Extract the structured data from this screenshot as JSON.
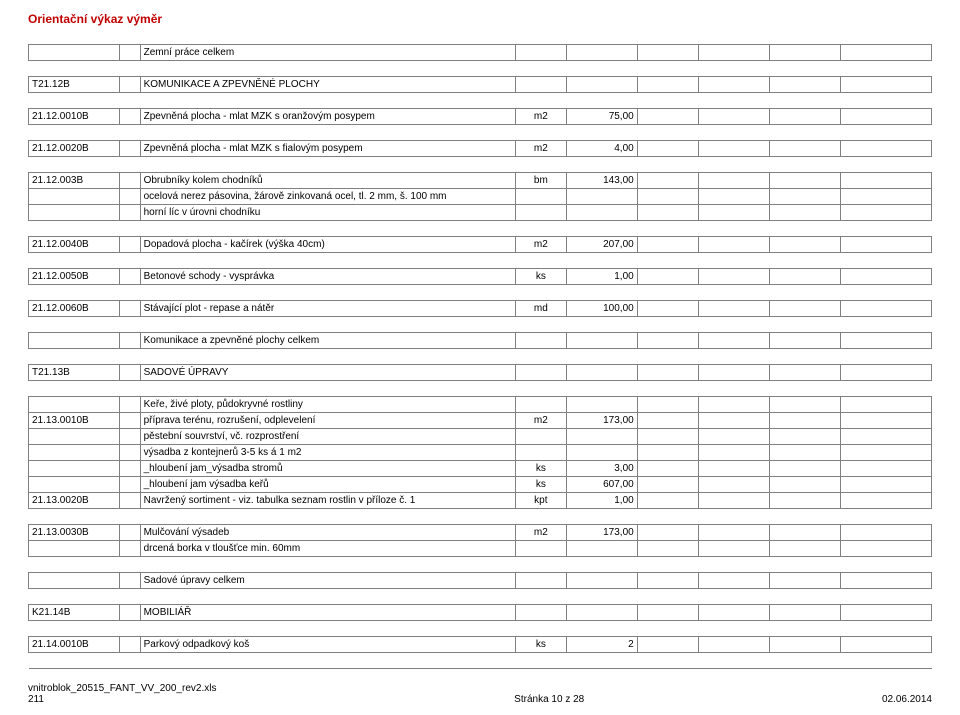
{
  "title": "Orientační výkaz výměr",
  "footer": {
    "left_line1": "vnitroblok_20515_FANT_VV_200_rev2.xls",
    "left_line2": "211",
    "center": "Stránka 10 z 28",
    "right": "02.06.2014"
  },
  "colors": {
    "title": "#c00000",
    "border": "#808080",
    "text": "#000000",
    "background": "#ffffff"
  },
  "rows": [
    {
      "t": "data",
      "code": "",
      "desc": "Zemní práce celkem",
      "unit": "",
      "qty": ""
    },
    {
      "t": "gap"
    },
    {
      "t": "data",
      "code": "T21.12B",
      "desc": "KOMUNIKACE A ZPEVNĚNÉ PLOCHY",
      "unit": "",
      "qty": ""
    },
    {
      "t": "gap"
    },
    {
      "t": "data",
      "code": "21.12.0010B",
      "desc": "Zpevněná plocha - mlat MZK s oranžovým posypem",
      "unit": "m2",
      "qty": "75,00"
    },
    {
      "t": "gap"
    },
    {
      "t": "data",
      "code": "21.12.0020B",
      "desc": "Zpevněná plocha - mlat MZK s fialovým posypem",
      "unit": "m2",
      "qty": "4,00"
    },
    {
      "t": "gap"
    },
    {
      "t": "data",
      "code": "21.12.003B",
      "desc": "Obrubníky kolem chodníků",
      "unit": "bm",
      "qty": "143,00"
    },
    {
      "t": "data",
      "code": "",
      "desc": "ocelová nerez pásovina, žárově zinkovaná ocel, tl. 2 mm, š. 100 mm",
      "unit": "",
      "qty": ""
    },
    {
      "t": "data",
      "code": "",
      "desc": "horní líc v úrovni chodníku",
      "unit": "",
      "qty": ""
    },
    {
      "t": "gap"
    },
    {
      "t": "data",
      "code": "21.12.0040B",
      "desc": "Dopadová plocha - kačírek (výška 40cm)",
      "unit": "m2",
      "qty": "207,00"
    },
    {
      "t": "gap"
    },
    {
      "t": "data",
      "code": "21.12.0050B",
      "desc": "Betonové schody - vysprávka",
      "unit": "ks",
      "qty": "1,00"
    },
    {
      "t": "gap"
    },
    {
      "t": "data",
      "code": "21.12.0060B",
      "desc": "Stávající plot - repase a nátěr",
      "unit": "md",
      "qty": "100,00"
    },
    {
      "t": "gap"
    },
    {
      "t": "data",
      "code": "",
      "desc": "Komunikace a zpevněné plochy celkem",
      "unit": "",
      "qty": ""
    },
    {
      "t": "gap"
    },
    {
      "t": "data",
      "code": "T21.13B",
      "desc": "SADOVÉ ÚPRAVY",
      "unit": "",
      "qty": ""
    },
    {
      "t": "gap"
    },
    {
      "t": "data",
      "code": "",
      "desc": "Keře, živé ploty, půdokryvné rostliny",
      "unit": "",
      "qty": "",
      "merge_desc": true
    },
    {
      "t": "data",
      "code": "21.13.0010B",
      "desc": "příprava terénu, rozrušení, odplevelení",
      "unit": "m2",
      "qty": "173,00"
    },
    {
      "t": "data",
      "code": "",
      "desc": "pěstební souvrství, vč. rozprostření",
      "unit": "",
      "qty": ""
    },
    {
      "t": "data",
      "code": "",
      "desc": "výsadba z kontejnerů 3-5 ks á 1 m2",
      "unit": "",
      "qty": ""
    },
    {
      "t": "data",
      "code": "",
      "desc": "_hloubení jam_výsadba stromů",
      "unit": "ks",
      "qty": "3,00"
    },
    {
      "t": "data",
      "code": "",
      "desc": "_hloubení jam výsadba keřů",
      "unit": "ks",
      "qty": "607,00"
    },
    {
      "t": "data",
      "code": "21.13.0020B",
      "desc": "Navržený sortiment - viz. tabulka seznam rostlin v příloze č. 1",
      "unit": "kpt",
      "qty": "1,00"
    },
    {
      "t": "gap"
    },
    {
      "t": "data",
      "code": "21.13.0030B",
      "desc": "Mulčování výsadeb",
      "unit": "m2",
      "qty": "173,00"
    },
    {
      "t": "data",
      "code": "",
      "desc": "drcená borka v tloušťce min. 60mm",
      "unit": "",
      "qty": ""
    },
    {
      "t": "gap"
    },
    {
      "t": "data",
      "code": "",
      "desc": "Sadové úpravy  celkem",
      "unit": "",
      "qty": ""
    },
    {
      "t": "gap"
    },
    {
      "t": "data",
      "code": "K21.14B",
      "desc": "MOBILIÁŘ",
      "unit": "",
      "qty": ""
    },
    {
      "t": "gap"
    },
    {
      "t": "data",
      "code": "21.14.0010B",
      "desc": "Parkový odpadkový koš",
      "unit": "ks",
      "qty": "2"
    },
    {
      "t": "gap-bottom"
    }
  ]
}
